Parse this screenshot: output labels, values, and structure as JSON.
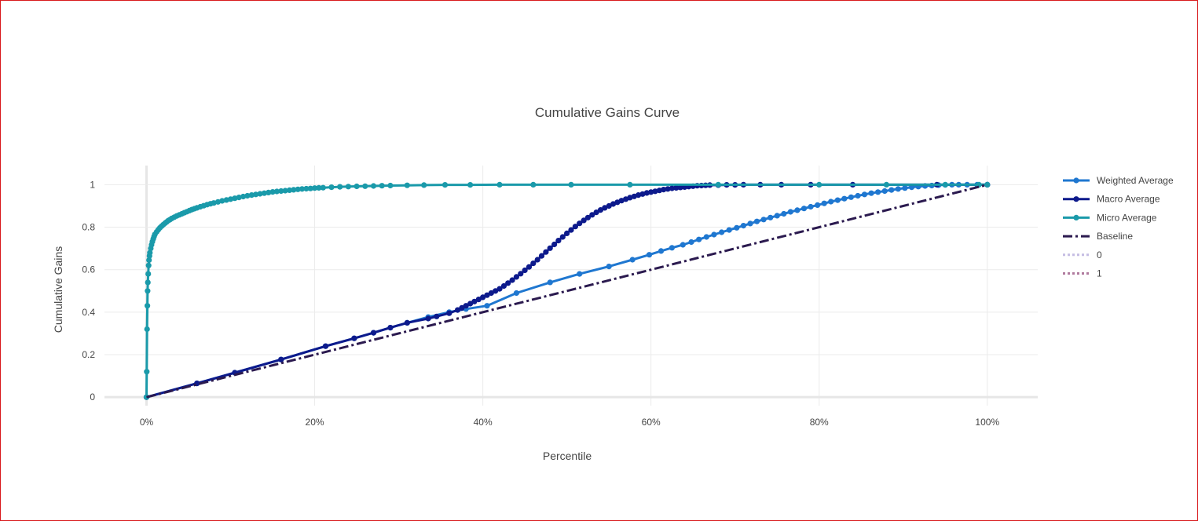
{
  "chart_data": {
    "type": "line",
    "title": "Cumulative Gains Curve",
    "xlabel": "Percentile",
    "ylabel": "Cumulative Gains",
    "xlim": [
      -0.05,
      1.06
    ],
    "ylim": [
      -0.04,
      1.09
    ],
    "grid": true,
    "legend_position": "right",
    "x_ticks": [
      {
        "value": 0,
        "label": "0%"
      },
      {
        "value": 0.2,
        "label": "20%"
      },
      {
        "value": 0.4,
        "label": "40%"
      },
      {
        "value": 0.6,
        "label": "60%"
      },
      {
        "value": 0.8,
        "label": "80%"
      },
      {
        "value": 1.0,
        "label": "100%"
      }
    ],
    "y_ticks": [
      {
        "value": 0,
        "label": "0"
      },
      {
        "value": 0.2,
        "label": "0.2"
      },
      {
        "value": 0.4,
        "label": "0.4"
      },
      {
        "value": 0.6,
        "label": "0.6"
      },
      {
        "value": 0.8,
        "label": "0.8"
      },
      {
        "value": 1,
        "label": "1"
      }
    ],
    "series": [
      {
        "name": "Weighted Average",
        "color": "#1f77d0",
        "style": "line+markers",
        "x": [
          0,
          0.06,
          0.105,
          0.16,
          0.213,
          0.247,
          0.27,
          0.29,
          0.31,
          0.335,
          0.36,
          0.38,
          0.405,
          0.44,
          0.48,
          0.515,
          0.55,
          0.578,
          0.598,
          0.612,
          0.625,
          0.638,
          0.648,
          0.657,
          0.666,
          0.675,
          0.684,
          0.693,
          0.702,
          0.71,
          0.718,
          0.726,
          0.734,
          0.742,
          0.75,
          0.758,
          0.766,
          0.774,
          0.782,
          0.79,
          0.798,
          0.806,
          0.814,
          0.822,
          0.83,
          0.838,
          0.846,
          0.854,
          0.862,
          0.87,
          0.878,
          0.886,
          0.894,
          0.902,
          0.91,
          0.918,
          0.926,
          0.934,
          0.942,
          0.95,
          0.958,
          0.966,
          0.976,
          0.988,
          1.0
        ],
        "y": [
          0,
          0.065,
          0.115,
          0.177,
          0.24,
          0.277,
          0.303,
          0.327,
          0.35,
          0.377,
          0.4,
          0.415,
          0.43,
          0.49,
          0.54,
          0.58,
          0.615,
          0.647,
          0.67,
          0.688,
          0.703,
          0.717,
          0.73,
          0.742,
          0.754,
          0.765,
          0.776,
          0.787,
          0.797,
          0.807,
          0.817,
          0.827,
          0.836,
          0.845,
          0.854,
          0.863,
          0.872,
          0.88,
          0.888,
          0.896,
          0.904,
          0.912,
          0.92,
          0.927,
          0.934,
          0.941,
          0.948,
          0.954,
          0.96,
          0.965,
          0.97,
          0.975,
          0.98,
          0.984,
          0.988,
          0.991,
          0.994,
          0.996,
          0.998,
          0.999,
          1.0,
          1.0,
          1.0,
          1.0,
          1.0
        ]
      },
      {
        "name": "Macro Average",
        "color": "#0d1a8c",
        "style": "line+markers",
        "x": [
          0,
          0.06,
          0.105,
          0.16,
          0.213,
          0.247,
          0.27,
          0.29,
          0.31,
          0.335,
          0.345,
          0.36,
          0.37,
          0.375,
          0.38,
          0.385,
          0.39,
          0.395,
          0.4,
          0.405,
          0.41,
          0.415,
          0.42,
          0.425,
          0.43,
          0.435,
          0.44,
          0.445,
          0.45,
          0.455,
          0.46,
          0.465,
          0.47,
          0.475,
          0.48,
          0.485,
          0.49,
          0.495,
          0.5,
          0.505,
          0.51,
          0.515,
          0.52,
          0.525,
          0.53,
          0.535,
          0.54,
          0.545,
          0.55,
          0.555,
          0.56,
          0.565,
          0.57,
          0.575,
          0.58,
          0.585,
          0.59,
          0.595,
          0.6,
          0.605,
          0.61,
          0.615,
          0.62,
          0.625,
          0.63,
          0.635,
          0.64,
          0.645,
          0.65,
          0.655,
          0.66,
          0.665,
          0.67,
          0.68,
          0.69,
          0.7,
          0.71,
          0.73,
          0.755,
          0.79,
          0.84,
          0.94,
          1.0
        ],
        "y": [
          0,
          0.065,
          0.115,
          0.177,
          0.24,
          0.277,
          0.303,
          0.327,
          0.35,
          0.37,
          0.38,
          0.395,
          0.41,
          0.42,
          0.43,
          0.44,
          0.45,
          0.46,
          0.47,
          0.48,
          0.49,
          0.5,
          0.51,
          0.523,
          0.537,
          0.551,
          0.566,
          0.581,
          0.597,
          0.613,
          0.63,
          0.647,
          0.665,
          0.683,
          0.701,
          0.719,
          0.737,
          0.754,
          0.771,
          0.787,
          0.803,
          0.818,
          0.832,
          0.845,
          0.858,
          0.87,
          0.881,
          0.891,
          0.9,
          0.909,
          0.917,
          0.925,
          0.932,
          0.939,
          0.945,
          0.951,
          0.956,
          0.961,
          0.965,
          0.969,
          0.973,
          0.977,
          0.98,
          0.983,
          0.985,
          0.987,
          0.989,
          0.991,
          0.993,
          0.995,
          0.996,
          0.997,
          0.998,
          0.998,
          0.999,
          0.999,
          1.0,
          1.0,
          1.0,
          1.0,
          1.0,
          1.0,
          1.0
        ]
      },
      {
        "name": "Micro Average",
        "color": "#1a9aaa",
        "style": "line+markers",
        "x": [
          0,
          0.0003,
          0.0006,
          0.001,
          0.0013,
          0.0016,
          0.002,
          0.0025,
          0.003,
          0.0035,
          0.004,
          0.005,
          0.006,
          0.007,
          0.008,
          0.009,
          0.01,
          0.012,
          0.014,
          0.016,
          0.018,
          0.02,
          0.022,
          0.024,
          0.026,
          0.028,
          0.03,
          0.033,
          0.036,
          0.039,
          0.042,
          0.045,
          0.048,
          0.051,
          0.054,
          0.057,
          0.06,
          0.064,
          0.068,
          0.072,
          0.076,
          0.08,
          0.085,
          0.09,
          0.095,
          0.1,
          0.105,
          0.11,
          0.115,
          0.12,
          0.125,
          0.13,
          0.135,
          0.14,
          0.145,
          0.15,
          0.155,
          0.16,
          0.165,
          0.17,
          0.175,
          0.18,
          0.185,
          0.19,
          0.195,
          0.2,
          0.205,
          0.21,
          0.22,
          0.23,
          0.24,
          0.25,
          0.26,
          0.27,
          0.28,
          0.29,
          0.31,
          0.33,
          0.355,
          0.385,
          0.42,
          0.46,
          0.505,
          0.575,
          0.68,
          0.8,
          0.88,
          0.95,
          0.99,
          1.0
        ],
        "y": [
          0,
          0.12,
          0.32,
          0.43,
          0.5,
          0.54,
          0.58,
          0.62,
          0.645,
          0.665,
          0.68,
          0.7,
          0.717,
          0.732,
          0.745,
          0.756,
          0.766,
          0.778,
          0.788,
          0.797,
          0.805,
          0.812,
          0.819,
          0.825,
          0.831,
          0.836,
          0.841,
          0.847,
          0.853,
          0.858,
          0.863,
          0.868,
          0.873,
          0.878,
          0.883,
          0.887,
          0.891,
          0.896,
          0.901,
          0.906,
          0.91,
          0.914,
          0.919,
          0.924,
          0.928,
          0.932,
          0.936,
          0.94,
          0.944,
          0.948,
          0.951,
          0.954,
          0.957,
          0.96,
          0.963,
          0.966,
          0.968,
          0.97,
          0.972,
          0.974,
          0.976,
          0.978,
          0.98,
          0.981,
          0.982,
          0.984,
          0.985,
          0.986,
          0.988,
          0.99,
          0.991,
          0.992,
          0.993,
          0.994,
          0.995,
          0.996,
          0.997,
          0.998,
          0.999,
          0.999,
          1.0,
          1.0,
          1.0,
          1.0,
          1.0,
          1.0,
          1.0,
          1.0,
          1.0,
          1.0
        ]
      },
      {
        "name": "Baseline",
        "color": "#2b1a4f",
        "style": "dashdot",
        "x": [
          0,
          1
        ],
        "y": [
          0,
          1
        ]
      },
      {
        "name": "0",
        "color": "#c5bde3",
        "style": "dot",
        "legendonly": true
      },
      {
        "name": "1",
        "color": "#b07a9e",
        "style": "dot",
        "legendonly": true
      }
    ]
  }
}
